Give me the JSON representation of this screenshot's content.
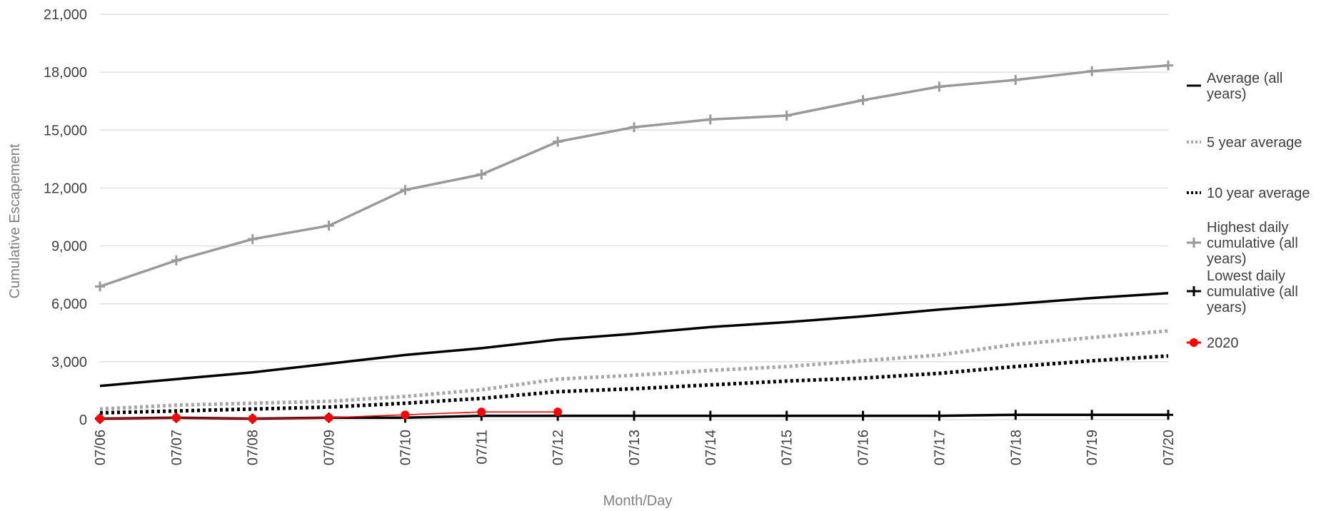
{
  "chart_data": {
    "type": "line",
    "xlabel": "Month/Day",
    "ylabel": "Cumulative Escapement",
    "ylim": [
      0,
      21000
    ],
    "yticks": [
      "0",
      "3,000",
      "6,000",
      "9,000",
      "12,000",
      "15,000",
      "18,000",
      "21,000"
    ],
    "ytick_values": [
      0,
      3000,
      6000,
      9000,
      12000,
      15000,
      18000,
      21000
    ],
    "categories": [
      "07/06",
      "07/07",
      "07/08",
      "07/09",
      "07/10",
      "07/11",
      "07/12",
      "07/13",
      "07/14",
      "07/15",
      "07/16",
      "07/17",
      "07/18",
      "07/19",
      "07/20"
    ],
    "grid": true,
    "legend_position": "right",
    "series": [
      {
        "name": "Average (all years)",
        "color": "#000000",
        "style": "solid",
        "marker": "none",
        "values": [
          1750,
          2100,
          2450,
          2900,
          3350,
          3700,
          4150,
          4450,
          4800,
          5050,
          5350,
          5700,
          6000,
          6300,
          6550
        ]
      },
      {
        "name": "5 year average",
        "color": "#a6a6a6",
        "style": "dotted",
        "marker": "none",
        "values": [
          550,
          750,
          850,
          950,
          1200,
          1550,
          2100,
          2300,
          2550,
          2750,
          3050,
          3350,
          3900,
          4250,
          4600
        ]
      },
      {
        "name": "10 year average",
        "color": "#000000",
        "style": "dotted",
        "marker": "none",
        "values": [
          350,
          450,
          550,
          650,
          850,
          1100,
          1450,
          1600,
          1800,
          2000,
          2150,
          2400,
          2750,
          3050,
          3300
        ]
      },
      {
        "name": "Highest daily cumulative (all years)",
        "color": "#999999",
        "style": "solid",
        "marker": "plus",
        "values": [
          6900,
          8250,
          9350,
          10050,
          11900,
          12700,
          14400,
          15150,
          15550,
          15750,
          16550,
          17250,
          17600,
          18050,
          18350
        ]
      },
      {
        "name": "Lowest daily cumulative (all years)",
        "color": "#000000",
        "style": "solid",
        "marker": "plus",
        "values": [
          50,
          100,
          50,
          100,
          100,
          200,
          200,
          200,
          200,
          200,
          200,
          200,
          250,
          250,
          250
        ]
      },
      {
        "name": "2020",
        "color": "#ff0000",
        "style": "solid",
        "marker": "circle",
        "values": [
          50,
          100,
          50,
          100,
          250,
          400,
          400,
          null,
          null,
          null,
          null,
          null,
          null,
          null,
          null
        ]
      }
    ],
    "legend": [
      {
        "lines": [
          "Average (all",
          "years)"
        ]
      },
      {
        "lines": [
          "5 year average"
        ]
      },
      {
        "lines": [
          "10 year average"
        ]
      },
      {
        "lines": [
          "Highest daily",
          "cumulative (all",
          "years)"
        ]
      },
      {
        "lines": [
          "Lowest daily",
          "cumulative (all",
          "years)"
        ]
      },
      {
        "lines": [
          "2020"
        ]
      }
    ]
  }
}
